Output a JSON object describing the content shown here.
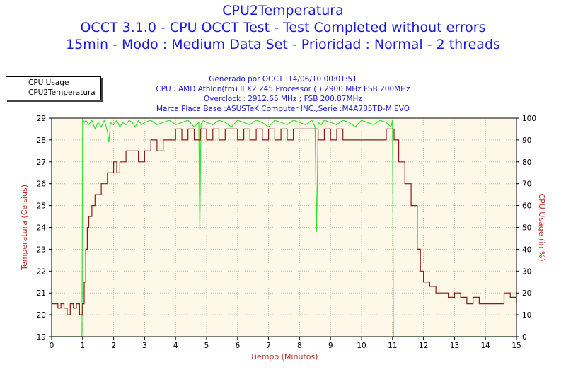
{
  "titles": {
    "line1": "CPU2Temperatura",
    "line2": "OCCT 3.1.0 - CPU OCCT Test - Test Completed without errors",
    "line3": "15min - Modo : Medium Data Set - Prioridad : Normal - 2 threads"
  },
  "info": {
    "line1": "Generado por OCCT :14/06/10 00:01:51",
    "line2": "CPU : AMD Athlon(tm) II X2 245 Processor (  ) 2900 MHz FSB 200MHz",
    "line3": "Overclock : 2912.65 MHz ; FSB 200.87MHz",
    "line4": "Marca Placa Base :ASUSTeK Computer INC.,Serie :M4A785TD-M EVO"
  },
  "colors": {
    "plot_bg": "#fdf8e8",
    "grid": "#c9c2a6",
    "cpu_usage": "#33e233",
    "temperature": "#8b1a1a",
    "title": "#1a1ad6",
    "axis_title": "#c0271f"
  },
  "chart_data": {
    "type": "line",
    "xlabel": "Tiempo (Minutos)",
    "ylabel_left": "Temperatura (Celsius)",
    "ylabel_right": "CPU Usage (in %)",
    "xlim": [
      0,
      15
    ],
    "ylim_left": [
      19,
      29
    ],
    "ylim_right": [
      0,
      100
    ],
    "x_ticks": [
      "0",
      "1",
      "2",
      "3",
      "4",
      "5",
      "6",
      "7",
      "8",
      "9",
      "10",
      "11",
      "12",
      "13",
      "14",
      "15"
    ],
    "y_left_ticks": [
      "19",
      "20",
      "21",
      "22",
      "23",
      "24",
      "25",
      "26",
      "27",
      "28",
      "29"
    ],
    "y_right_ticks": [
      "0",
      "10",
      "20",
      "30",
      "40",
      "50",
      "60",
      "70",
      "80",
      "90",
      "100"
    ],
    "grid": true,
    "legend_position": "top-left",
    "series": [
      {
        "name": "CPU Usage",
        "axis": "right",
        "x": [
          0,
          0.98,
          1.0,
          1.05,
          1.1,
          1.2,
          1.3,
          1.4,
          1.5,
          1.6,
          1.7,
          1.8,
          1.85,
          1.9,
          2.0,
          2.1,
          2.2,
          2.3,
          2.4,
          2.5,
          2.6,
          2.7,
          2.8,
          2.9,
          3.0,
          3.2,
          3.4,
          3.6,
          3.8,
          4.0,
          4.2,
          4.4,
          4.6,
          4.75,
          4.78,
          4.82,
          4.9,
          5.0,
          5.2,
          5.4,
          5.6,
          5.8,
          6.0,
          6.2,
          6.4,
          6.6,
          6.8,
          7.0,
          7.2,
          7.4,
          7.6,
          7.8,
          8.0,
          8.2,
          8.4,
          8.5,
          8.55,
          8.6,
          8.7,
          8.8,
          9.0,
          9.2,
          9.4,
          9.6,
          9.8,
          10.0,
          10.2,
          10.4,
          10.6,
          10.8,
          10.95,
          11.0,
          11.03,
          11.06,
          11.1,
          12,
          13,
          14,
          15
        ],
        "values": [
          0,
          0,
          100,
          98,
          99,
          97,
          99,
          95,
          98,
          96,
          99,
          94,
          89,
          98,
          97,
          99,
          96,
          98,
          97,
          99,
          98,
          96,
          99,
          97,
          98,
          99,
          97,
          98,
          99,
          97,
          98,
          99,
          96,
          98,
          49,
          97,
          99,
          98,
          97,
          99,
          98,
          96,
          99,
          98,
          97,
          99,
          98,
          96,
          99,
          98,
          97,
          99,
          98,
          97,
          99,
          96,
          48,
          98,
          97,
          99,
          98,
          97,
          99,
          98,
          96,
          99,
          98,
          97,
          99,
          98,
          96,
          99,
          0,
          0,
          0,
          0,
          0,
          0,
          0
        ]
      },
      {
        "name": "CPU2Temperatura",
        "axis": "left",
        "x": [
          0,
          0.1,
          0.2,
          0.3,
          0.4,
          0.5,
          0.6,
          0.7,
          0.8,
          0.9,
          1.0,
          1.05,
          1.1,
          1.15,
          1.2,
          1.3,
          1.4,
          1.5,
          1.6,
          1.7,
          1.8,
          1.9,
          2.0,
          2.1,
          2.2,
          2.4,
          2.6,
          2.8,
          3.0,
          3.2,
          3.4,
          3.6,
          3.8,
          4.0,
          4.2,
          4.4,
          4.6,
          4.8,
          5.0,
          5.2,
          5.4,
          5.6,
          5.8,
          6.0,
          6.2,
          6.4,
          6.6,
          6.8,
          7.0,
          7.2,
          7.4,
          7.6,
          7.8,
          8.0,
          8.2,
          8.4,
          8.6,
          8.8,
          9.0,
          9.2,
          9.4,
          9.6,
          9.8,
          10.0,
          10.2,
          10.4,
          10.6,
          10.8,
          10.95,
          11.05,
          11.2,
          11.4,
          11.6,
          11.8,
          11.9,
          12.0,
          12.2,
          12.4,
          12.6,
          12.8,
          13.0,
          13.2,
          13.4,
          13.6,
          13.8,
          14.0,
          14.2,
          14.4,
          14.6,
          14.8,
          15.0
        ],
        "values": [
          20.5,
          20.5,
          20.3,
          20.5,
          20.3,
          20.0,
          20.5,
          20.3,
          20.5,
          20.0,
          20.5,
          21.5,
          23.0,
          24.0,
          24.5,
          25.0,
          25.5,
          25.5,
          26.0,
          26.0,
          26.5,
          26.5,
          27.0,
          26.5,
          27.0,
          27.5,
          27.5,
          27.0,
          27.5,
          28.0,
          27.5,
          28.0,
          28.0,
          28.5,
          28.0,
          28.5,
          28.0,
          28.5,
          28.0,
          28.5,
          28.0,
          28.5,
          28.5,
          28.0,
          28.5,
          28.0,
          28.5,
          28.0,
          28.5,
          28.0,
          28.5,
          28.0,
          28.5,
          28.5,
          28.5,
          28.5,
          28.0,
          28.5,
          28.0,
          28.5,
          28.0,
          28.0,
          28.0,
          28.0,
          28.0,
          28.0,
          28.0,
          28.5,
          28.5,
          28.0,
          27.0,
          26.0,
          25.0,
          23.0,
          22.0,
          21.5,
          21.3,
          21.0,
          21.0,
          20.8,
          21.0,
          20.8,
          20.5,
          20.8,
          20.5,
          20.5,
          20.5,
          20.5,
          21.0,
          20.8,
          20.5
        ]
      }
    ]
  }
}
